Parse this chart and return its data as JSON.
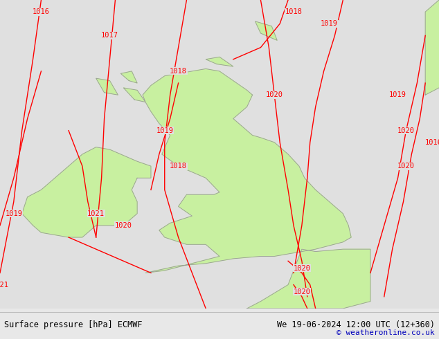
{
  "title_left": "Surface pressure [hPa] ECMWF",
  "title_right": "We 19-06-2024 12:00 UTC (12+360)",
  "copyright": "© weatheronline.co.uk",
  "bg_color": "#e0e0e0",
  "land_color": "#c8f0a0",
  "border_color": "#999999",
  "isobar_color": "#ff0000",
  "label_fontsize": 7.5,
  "footer_fontsize": 8.5,
  "copyright_color": "#0000bb",
  "lon_min": -11.0,
  "lon_max": 5.0,
  "lat_min": 48.5,
  "lat_max": 61.5
}
